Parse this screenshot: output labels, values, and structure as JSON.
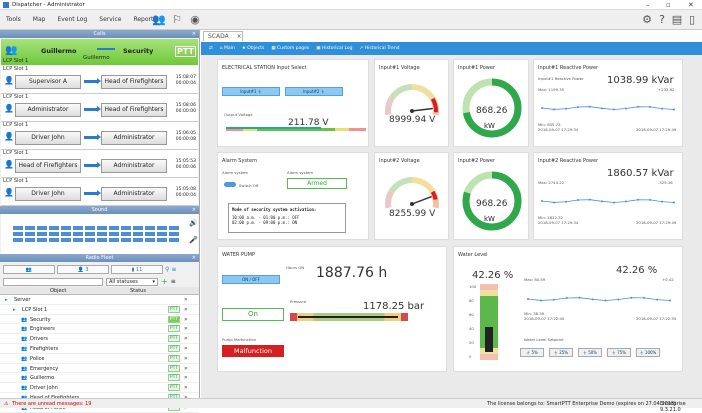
{
  "app": {
    "title": "Dispatcher - Administrator"
  },
  "menu": [
    "Tools",
    "Map",
    "Event Log",
    "Service",
    "Reports"
  ],
  "calls": {
    "header": "Calls",
    "active": {
      "from": "Guillermo",
      "to": "Security",
      "via": "Guillermo",
      "slot": "LCP Slot 1",
      "ptt": "PTT"
    },
    "items": [
      {
        "slot": "LCP Slot 1",
        "from": "Supervisor A",
        "to": "Head of Firefighters",
        "t1": "15:08:07",
        "t2": "00:00:04"
      },
      {
        "slot": "LCP Slot 1",
        "from": "Administrator",
        "to": "Head of Firefighters",
        "t1": "15:08:06",
        "t2": "00:00:00"
      },
      {
        "slot": "LCP Slot 1",
        "from": "Driver John",
        "to": "Administrator",
        "t1": "15:06:05",
        "t2": "00:00:08"
      },
      {
        "slot": "LCP Slot 1",
        "from": "Head of Firefighters",
        "to": "Administrator",
        "t1": "15:05:53",
        "t2": "00:00:06"
      },
      {
        "slot": "LCP Slot 1",
        "from": "Driver John",
        "to": "Administrator",
        "t1": "15:05:08",
        "t2": "00:00:04"
      }
    ]
  },
  "sound": {
    "header": "Sound"
  },
  "radio": {
    "header": "Radio Fleet",
    "count1": "3",
    "count2": "11",
    "filter": "All statuses",
    "col_object": "Object",
    "col_status": "Status",
    "rows": [
      {
        "name": "Server",
        "indent": 1,
        "ptt": ""
      },
      {
        "name": "LCP Slot 1",
        "indent": 2,
        "ptt": "PTT"
      },
      {
        "name": "Security",
        "indent": 3,
        "ptt": "PTT",
        "on": true
      },
      {
        "name": "Engineers",
        "indent": 3,
        "ptt": "PTT"
      },
      {
        "name": "Drivers",
        "indent": 3,
        "ptt": "PTT"
      },
      {
        "name": "Firefighters",
        "indent": 3,
        "ptt": "PTT"
      },
      {
        "name": "Police",
        "indent": 3,
        "ptt": "PTT"
      },
      {
        "name": "Emergency",
        "indent": 3,
        "ptt": "PTT"
      },
      {
        "name": "Guillermo",
        "indent": 3,
        "ptt": "PTT"
      },
      {
        "name": "Driver John",
        "indent": 3,
        "ptt": "PTT"
      },
      {
        "name": "Head of Firefighters",
        "indent": 3,
        "ptt": "PTT"
      },
      {
        "name": "Head of Police",
        "indent": 3,
        "ptt": "PTT"
      }
    ]
  },
  "status": {
    "unread": "There are unread messages: 19",
    "license": "The license belongs to:  SmartPTT Enterprise Demo (expires on 27.04.2018)",
    "version": "Enterprise 9.3.21.0"
  },
  "scada": {
    "tab": "SCADA",
    "crumbs": [
      "Main",
      "Objects",
      "Custom pages",
      "Historical Log",
      "Historical Trend"
    ],
    "es": {
      "title": "ELECTRICAL STATION Input Select",
      "in1": "Input#1",
      "in2": "Input#2",
      "volt_label": "Output Voltage",
      "volt": "211.78 V"
    },
    "v1": {
      "title": "Input#1 Voltage",
      "value": "8999.94 V",
      "level": 0.92
    },
    "p1": {
      "title": "Input#1 Power",
      "value": "868.26",
      "unit": "kW",
      "level": 0.72
    },
    "r1": {
      "title": "Input#1 Reactive Power",
      "sub": "Input#1 Reactive Power",
      "value": "1038.99 kVar",
      "max": "Max: 1199.35",
      "d": "+232.62",
      "min": "Min: 805.73",
      "ts1": "2018-09-07 17:29:34",
      "ts2": "2018-09-07 17:29:49"
    },
    "alarm": {
      "title": "Alarm System",
      "lbl": "Alarm system",
      "switch": "Switch Off",
      "lbl2": "Alarm system",
      "state": "Armed",
      "sched_title": "Mode of security system activation:",
      "l1": "10:00 a.m. - 01:00 p.m.: OFF",
      "l2": "02:00 p.m. - 09:00 p.m.: ON"
    },
    "v2": {
      "title": "Input#2 Voltage",
      "value": "8255.99 V",
      "level": 0.85
    },
    "p2": {
      "title": "Input#2 Power",
      "value": "968.26",
      "unit": "kW",
      "level": 0.8
    },
    "r2": {
      "title": "Input#2 Reactive Power",
      "value": "1860.57 kVar",
      "max": "Max: 2744.22",
      "d": "-329.16",
      "min": "Min: 1812.32",
      "ts1": "2018-09-07 17:29:34",
      "ts2": "2018-09-07 17:29:49"
    },
    "pump": {
      "title": "WATER PUMP",
      "hours_lbl": "Hours ON",
      "hours": "1887.76 h",
      "onoff": "ON / OFF",
      "state": "On",
      "pressure_lbl": "Pressure",
      "pressure": "1178.25 bar",
      "malf_lbl": "Pump Malfunction",
      "malf": "Malfunction"
    },
    "water": {
      "title": "Water Level",
      "pct": "42.26 %",
      "pct2": "42.26 %",
      "max": "Max: 80.59",
      "d": "+0.42",
      "min": "Min: 38.39",
      "ts1": "2018-09-07 17:22:40",
      "ts2": "2018-09-07 17:22:55",
      "setpoint": "Water Level Setpoint",
      "ticks": [
        "100",
        "80",
        "60",
        "40",
        "20",
        "0"
      ],
      "sp": [
        "5%",
        "25%",
        "50%",
        "75%",
        "100%"
      ]
    }
  }
}
